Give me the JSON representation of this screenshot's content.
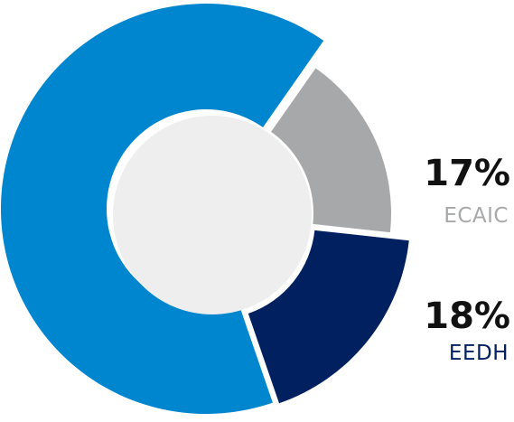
{
  "chart_data": {
    "type": "pie",
    "style": "exploded donut",
    "slices": [
      {
        "label": "ECAIC",
        "display": "17%",
        "value": 17,
        "color": "#a7a8a9"
      },
      {
        "label": "EEDH",
        "display": "18%",
        "value": 18,
        "color": "#002060"
      },
      {
        "label": "",
        "display": "",
        "value": 65,
        "color": "#0085cf"
      }
    ],
    "center_color": "#eeeeee"
  },
  "labels": {
    "ecaic_pct": "17%",
    "ecaic_name": "ECAIC",
    "eedh_pct": "18%",
    "eedh_name": "EEDH"
  }
}
